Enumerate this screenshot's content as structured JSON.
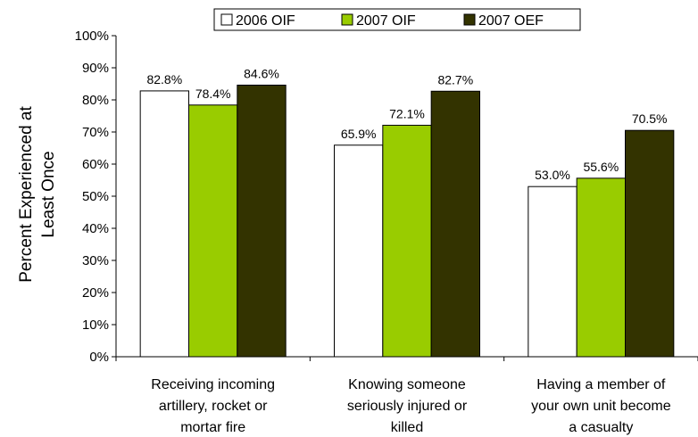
{
  "chart_data": {
    "type": "bar",
    "title": "",
    "ylabel_lines": [
      "Percent Experienced at",
      "Least Once"
    ],
    "xlabel": "",
    "ylim": [
      0,
      100
    ],
    "yticks": [
      "0%",
      "10%",
      "20%",
      "30%",
      "40%",
      "50%",
      "60%",
      "70%",
      "80%",
      "90%",
      "100%"
    ],
    "categories": [
      [
        "Receiving incoming",
        "artillery, rocket or",
        "mortar fire"
      ],
      [
        "Knowing someone",
        "seriously injured or",
        "killed"
      ],
      [
        "Having a member of",
        "your own unit become",
        "a casualty"
      ]
    ],
    "series": [
      {
        "name": "2006 OIF",
        "color": "#ffffff",
        "values": [
          82.8,
          65.9,
          53.0
        ],
        "labels": [
          "82.8%",
          "65.9%",
          "53.0%"
        ]
      },
      {
        "name": "2007 OIF",
        "color": "#99cc00",
        "values": [
          78.4,
          72.1,
          55.6
        ],
        "labels": [
          "78.4%",
          "72.1%",
          "55.6%"
        ]
      },
      {
        "name": "2007 OEF",
        "color": "#333300",
        "values": [
          84.6,
          82.7,
          70.5
        ],
        "labels": [
          "84.6%",
          "82.7%",
          "70.5%"
        ]
      }
    ],
    "legend_position": "top",
    "grid": false
  }
}
